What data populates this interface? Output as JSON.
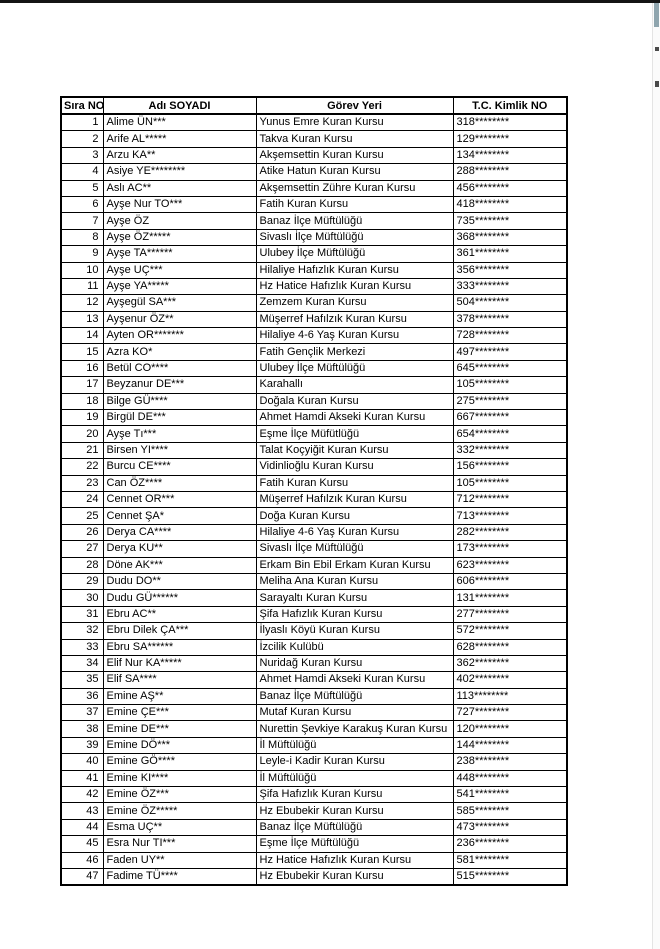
{
  "page": {
    "colors": {
      "top_bar": "#141414",
      "scrollbar_thumb": "#8fa5ae",
      "table_border": "#000000",
      "page_background": "#ffffff"
    }
  },
  "table": {
    "headers": [
      "Sıra NO",
      "Adı SOYADI",
      "Görev Yeri",
      "T.C. Kimlik NO"
    ],
    "rows": [
      [
        "1",
        "Alime ÜN***",
        "Yunus Emre Kuran Kursu",
        "318********"
      ],
      [
        "2",
        "Arife AL*****",
        "Takva Kuran Kursu",
        "129********"
      ],
      [
        "3",
        "Arzu KA**",
        "Akşemsettin Kuran Kursu",
        "134********"
      ],
      [
        "4",
        "Asiye YE********",
        "Atike Hatun Kuran Kursu",
        "288********"
      ],
      [
        "5",
        "Aslı AC**",
        "Akşemsettin Zühre Kuran Kursu",
        "456********"
      ],
      [
        "6",
        "Ayşe Nur TO***",
        "Fatih Kuran Kursu",
        "418********"
      ],
      [
        "7",
        "Ayşe ÖZ",
        "Banaz İlçe Müftülüğü",
        "735********"
      ],
      [
        "8",
        "Ayşe ÖZ*****",
        "Sivaslı İlçe Müftülüğü",
        "368********"
      ],
      [
        "9",
        "Ayşe TA******",
        "Ulubey İlçe Müftülüğü",
        "361********"
      ],
      [
        "10",
        "Ayşe UÇ***",
        "Hilaliye Hafızlık Kuran Kursu",
        "356********"
      ],
      [
        "11",
        "Ayşe YA*****",
        "Hz Hatice Hafızlık Kuran Kursu",
        "333********"
      ],
      [
        "12",
        "Ayşegül SA***",
        "Zemzem Kuran Kursu",
        "504********"
      ],
      [
        "13",
        "Ayşenur ÖZ**",
        "Müşerref Hafılzık Kuran Kursu",
        "378********"
      ],
      [
        "14",
        "Ayten OR*******",
        "Hilaliye 4-6 Yaş Kuran Kursu",
        "728********"
      ],
      [
        "15",
        "Azra KO*",
        "Fatih Gençlik Merkezi",
        "497********"
      ],
      [
        "16",
        "Betül CO****",
        "Ulubey İlçe Müftülüğü",
        "645********"
      ],
      [
        "17",
        "Beyzanur DE***",
        "Karahallı",
        "105********"
      ],
      [
        "18",
        "Bilge GÜ****",
        "Doğala Kuran Kursu",
        "275********"
      ],
      [
        "19",
        "Birgül DE***",
        "Ahmet Hamdi Akseki Kuran Kursu",
        "667********"
      ],
      [
        "20",
        "Ayşe Tı***",
        "Eşme İlçe Müfütlüğü",
        "654********"
      ],
      [
        "21",
        "Birsen YI****",
        "Talat Koçyiğit Kuran Kursu",
        "332********"
      ],
      [
        "22",
        "Burcu CE****",
        "Vidinlioğlu Kuran Kursu",
        "156********"
      ],
      [
        "23",
        "Can ÖZ****",
        "Fatih Kuran Kursu",
        "105********"
      ],
      [
        "24",
        "Cennet OR***",
        "Müşerref Hafılzık Kuran Kursu",
        "712********"
      ],
      [
        "25",
        "Cennet ŞA*",
        "Doğa Kuran Kursu",
        "713********"
      ],
      [
        "26",
        "Derya CA****",
        "Hilaliye 4-6 Yaş Kuran Kursu",
        "282********"
      ],
      [
        "27",
        "Derya KU**",
        "Sivaslı İlçe Müftülüğü",
        "173********"
      ],
      [
        "28",
        "Döne AK***",
        "Erkam Bin Ebil Erkam Kuran Kursu",
        "623********"
      ],
      [
        "29",
        "Dudu DO**",
        "Meliha Ana Kuran Kursu",
        "606********"
      ],
      [
        "30",
        "Dudu GÜ******",
        "Sarayaltı Kuran Kursu",
        "131********"
      ],
      [
        "31",
        "Ebru AC**",
        "Şifa Hafızlık Kuran Kursu",
        "277********"
      ],
      [
        "32",
        "Ebru Dilek ÇA***",
        "İlyaslı Köyü Kuran Kursu",
        "572********"
      ],
      [
        "33",
        "Ebru SA******",
        "İzcilik Kulübü",
        "628********"
      ],
      [
        "34",
        "Elif Nur KA*****",
        "Nuridağ Kuran Kursu",
        "362********"
      ],
      [
        "35",
        "Elif SA****",
        "Ahmet Hamdi Akseki Kuran Kursu",
        "402********"
      ],
      [
        "36",
        "Emine AŞ**",
        "Banaz İlçe Müftülüğü",
        "113********"
      ],
      [
        "37",
        "Emine ÇE***",
        "Mutaf Kuran Kursu",
        "727********"
      ],
      [
        "38",
        "Emine DE***",
        "Nurettin Şevkiye Karakuş Kuran Kursu",
        "120********"
      ],
      [
        "39",
        "Emine DÖ***",
        "İl Müftülüğü",
        "144********"
      ],
      [
        "40",
        "Emine GÖ****",
        "Leyle-i Kadir Kuran Kursu",
        "238********"
      ],
      [
        "41",
        "Emine KI****",
        "İl Müftülüğü",
        "448********"
      ],
      [
        "42",
        "Emine ÖZ***",
        "Şifa Hafızlık Kuran Kursu",
        "541********"
      ],
      [
        "43",
        "Emine ÖZ*****",
        "Hz Ebubekir Kuran Kursu",
        "585********"
      ],
      [
        "44",
        "Esma UÇ**",
        "Banaz İlçe Müftülüğü",
        "473********"
      ],
      [
        "45",
        "Esra Nur TI***",
        "Eşme İlçe Müftülüğü",
        "236********"
      ],
      [
        "46",
        "Faden UY**",
        "Hz Hatice Hafızlık Kuran Kursu",
        "581********"
      ],
      [
        "47",
        "Fadime TÜ****",
        "Hz Ebubekir Kuran Kursu",
        "515********"
      ]
    ]
  }
}
